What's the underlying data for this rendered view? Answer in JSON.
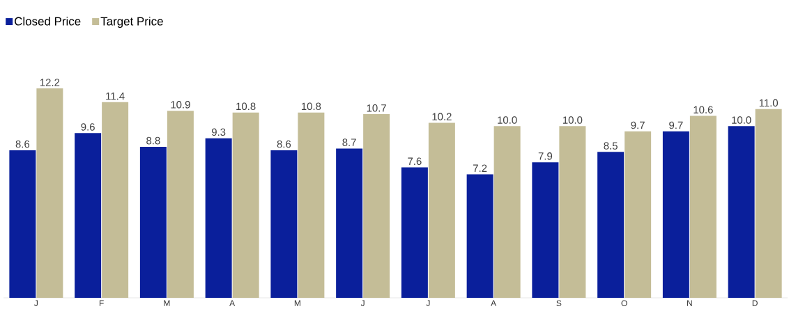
{
  "chart_data": {
    "type": "bar",
    "categories": [
      "J",
      "F",
      "M",
      "A",
      "M",
      "J",
      "J",
      "A",
      "S",
      "O",
      "N",
      "D"
    ],
    "series": [
      {
        "name": "Closed Price",
        "color": "#0a1f9b",
        "values": [
          8.6,
          9.6,
          8.8,
          9.3,
          8.6,
          8.7,
          7.6,
          7.2,
          7.9,
          8.5,
          9.7,
          10.0
        ],
        "value_labels": [
          "8.6",
          "9.6",
          "8.8",
          "9.3",
          "8.6",
          "8.7",
          "7.6",
          "7.2",
          "7.9",
          "8.5",
          "9.7",
          "10.0"
        ]
      },
      {
        "name": "Target Price",
        "color": "#c4bd97",
        "values": [
          12.2,
          11.4,
          10.9,
          10.8,
          10.8,
          10.7,
          10.2,
          10.0,
          10.0,
          9.7,
          10.6,
          11.0
        ],
        "value_labels": [
          "12.2",
          "11.4",
          "10.9",
          "10.8",
          "10.8",
          "10.7",
          "10.2",
          "10.0",
          "10.0",
          "9.7",
          "10.6",
          "11.0"
        ]
      }
    ],
    "legend": "top left"
  }
}
